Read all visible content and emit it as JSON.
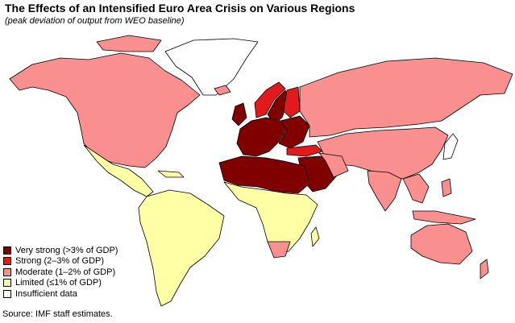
{
  "header": {
    "title": "The Effects of an Intensified Euro Area Crisis on Various Regions",
    "subtitle": "(peak deviation of output from WEO baseline)"
  },
  "legend": {
    "items": [
      {
        "label": "Very strong (>3% of GDP)",
        "color": "#800000"
      },
      {
        "label": "Strong (2–3% of GDP)",
        "color": "#e31a1c"
      },
      {
        "label": "Moderate (1–2% of GDP)",
        "color": "#fa8f8f"
      },
      {
        "label": "Limited (≤1% of GDP)",
        "color": "#ffffa6"
      },
      {
        "label": "Insufficient data",
        "color": "#ffffff"
      }
    ]
  },
  "source": "Source: IMF staff estimates.",
  "colors": {
    "border": "#000000",
    "background": "#ffffff"
  }
}
